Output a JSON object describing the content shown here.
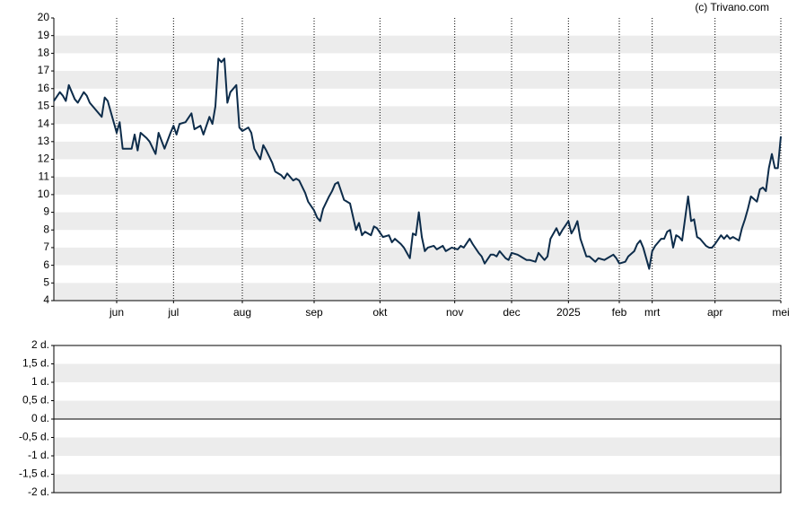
{
  "credit": "(c) Trivano.com",
  "chart_data": [
    {
      "type": "line",
      "color": "#0d2c4a",
      "xlim": [
        0,
        243
      ],
      "xticks": [
        {
          "value": 21,
          "label": "jun"
        },
        {
          "value": 40,
          "label": "jul"
        },
        {
          "value": 63,
          "label": "aug"
        },
        {
          "value": 87,
          "label": "sep"
        },
        {
          "value": 109,
          "label": "okt"
        },
        {
          "value": 134,
          "label": "nov"
        },
        {
          "value": 153,
          "label": "dec"
        },
        {
          "value": 172,
          "label": "2025"
        },
        {
          "value": 189,
          "label": "feb"
        },
        {
          "value": 200,
          "label": "mrt"
        },
        {
          "value": 221,
          "label": "apr"
        },
        {
          "value": 243,
          "label": "mei"
        }
      ],
      "ylim": [
        4,
        20
      ],
      "yticks": [
        4,
        5,
        6,
        7,
        8,
        9,
        10,
        11,
        12,
        13,
        14,
        15,
        16,
        17,
        18,
        19,
        20
      ],
      "grid": true,
      "x": [
        0,
        2,
        3,
        4,
        5,
        7,
        8,
        10,
        11,
        12,
        14,
        16,
        17,
        18,
        20,
        21,
        22,
        23,
        26,
        27,
        28,
        29,
        31,
        32,
        34,
        35,
        37,
        39,
        40,
        41,
        42,
        44,
        46,
        47,
        49,
        50,
        52,
        53,
        54,
        55,
        56,
        57,
        58,
        59,
        61,
        62,
        63,
        65,
        66,
        67,
        69,
        70,
        71,
        73,
        74,
        76,
        77,
        78,
        80,
        81,
        82,
        84,
        85,
        87,
        88,
        89,
        90,
        92,
        93,
        94,
        95,
        97,
        98,
        99,
        101,
        102,
        103,
        104,
        106,
        107,
        108,
        110,
        112,
        113,
        114,
        116,
        117,
        119,
        120,
        121,
        122,
        123,
        124,
        125,
        127,
        128,
        130,
        131,
        133,
        135,
        136,
        137,
        139,
        140,
        142,
        143,
        144,
        146,
        147,
        148,
        149,
        151,
        152,
        153,
        155,
        156,
        158,
        159,
        161,
        162,
        164,
        165,
        166,
        168,
        169,
        170,
        172,
        173,
        174,
        175,
        176,
        178,
        179,
        181,
        182,
        184,
        185,
        187,
        188,
        189,
        191,
        192,
        194,
        195,
        196,
        197,
        199,
        200,
        201,
        203,
        204,
        205,
        206,
        207,
        208,
        209,
        210,
        212,
        213,
        214,
        215,
        216,
        218,
        219,
        220,
        221,
        223,
        224,
        225,
        226,
        227,
        229,
        230,
        231,
        232,
        233,
        235,
        236,
        237,
        238,
        239,
        240,
        241,
        242,
        243
      ],
      "values": [
        15.3,
        15.8,
        15.6,
        15.3,
        16.2,
        15.4,
        15.2,
        15.8,
        15.6,
        15.2,
        14.8,
        14.4,
        15.5,
        15.3,
        14.1,
        13.5,
        14.1,
        12.6,
        12.6,
        13.4,
        12.5,
        13.5,
        13.2,
        13.0,
        12.3,
        13.5,
        12.6,
        13.5,
        13.9,
        13.4,
        14.0,
        14.1,
        14.6,
        13.7,
        13.9,
        13.4,
        14.4,
        14.0,
        15.0,
        17.7,
        17.5,
        17.7,
        15.2,
        15.8,
        16.2,
        13.8,
        13.6,
        13.8,
        13.5,
        12.6,
        12.0,
        12.8,
        12.5,
        11.8,
        11.3,
        11.1,
        10.9,
        11.2,
        10.8,
        10.9,
        10.8,
        10.1,
        9.6,
        9.1,
        8.7,
        8.5,
        9.2,
        9.9,
        10.2,
        10.6,
        10.7,
        9.7,
        9.6,
        9.5,
        8.0,
        8.4,
        7.7,
        7.9,
        7.7,
        8.2,
        8.1,
        7.6,
        7.7,
        7.3,
        7.5,
        7.2,
        7.0,
        6.4,
        7.8,
        7.7,
        9.0,
        7.6,
        6.8,
        7.0,
        7.1,
        6.9,
        7.1,
        6.8,
        7.0,
        6.9,
        7.1,
        7.0,
        7.5,
        7.2,
        6.7,
        6.5,
        6.1,
        6.6,
        6.6,
        6.5,
        6.8,
        6.4,
        6.3,
        6.7,
        6.6,
        6.5,
        6.3,
        6.3,
        6.2,
        6.7,
        6.3,
        6.5,
        7.5,
        8.1,
        7.7,
        8.0,
        8.5,
        7.8,
        8.1,
        8.5,
        7.5,
        6.5,
        6.5,
        6.2,
        6.4,
        6.3,
        6.4,
        6.6,
        6.4,
        6.1,
        6.2,
        6.5,
        6.8,
        7.2,
        7.4,
        7.0,
        5.8,
        6.8,
        7.1,
        7.5,
        7.5,
        7.9,
        8.0,
        7.0,
        7.7,
        7.6,
        7.4,
        9.9,
        8.5,
        8.6,
        7.6,
        7.5,
        7.1,
        7.0,
        7.0,
        7.2,
        7.7,
        7.5,
        7.7,
        7.5,
        7.6,
        7.4,
        8.1,
        8.6,
        9.2,
        9.9,
        9.6,
        10.3,
        10.4,
        10.2,
        11.5,
        12.3,
        11.5,
        11.5,
        13.3
      ]
    },
    {
      "type": "line",
      "ylim": [
        -2,
        2
      ],
      "yticks": [
        {
          "value": -2,
          "label": "-2 d."
        },
        {
          "value": -1.5,
          "label": "-1,5 d."
        },
        {
          "value": -1,
          "label": "-1 d."
        },
        {
          "value": -0.5,
          "label": "-0,5 d."
        },
        {
          "value": 0,
          "label": "0 d."
        },
        {
          "value": 0.5,
          "label": "0,5 d."
        },
        {
          "value": 1,
          "label": "1 d."
        },
        {
          "value": 1.5,
          "label": "1,5 d."
        },
        {
          "value": 2,
          "label": "2 d."
        }
      ],
      "grid": true
    }
  ]
}
